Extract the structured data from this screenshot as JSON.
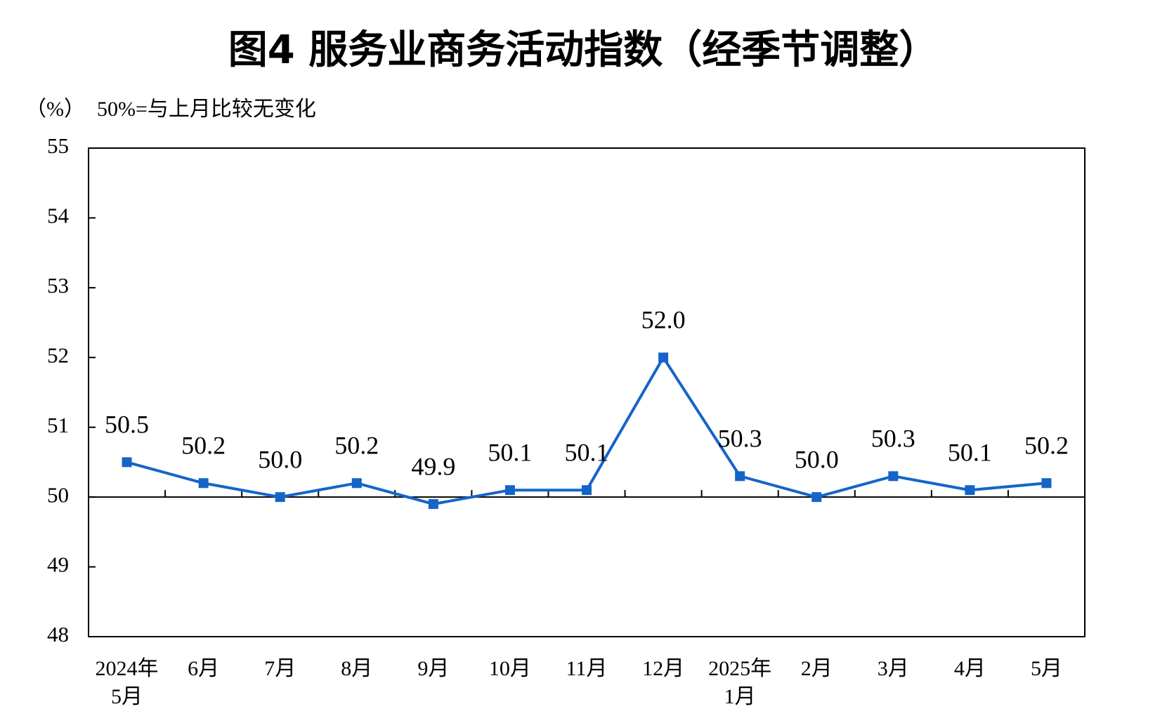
{
  "chart_data": {
    "type": "line",
    "title": "图4  服务业商务活动指数（经季节调整）",
    "unit_label": "（%）",
    "note": "50%=与上月比较无变化",
    "categories": [
      "2024年\n5月",
      "6月",
      "7月",
      "8月",
      "9月",
      "10月",
      "11月",
      "12月",
      "2025年\n1月",
      "2月",
      "3月",
      "4月",
      "5月"
    ],
    "series": [
      {
        "name": "服务业商务活动指数",
        "color": "#1565c8",
        "values": [
          50.5,
          50.2,
          50.0,
          50.2,
          49.9,
          50.1,
          50.1,
          52.0,
          50.3,
          50.0,
          50.3,
          50.1,
          50.2
        ],
        "value_labels": [
          "50.5",
          "50.2",
          "50.0",
          "50.2",
          "49.9",
          "50.1",
          "50.1",
          "52.0",
          "50.3",
          "50.0",
          "50.3",
          "50.1",
          "50.2"
        ]
      }
    ],
    "ylim": [
      48,
      55
    ],
    "yticks": [
      48,
      49,
      50,
      51,
      52,
      53,
      54,
      55
    ],
    "baseline": 50
  }
}
